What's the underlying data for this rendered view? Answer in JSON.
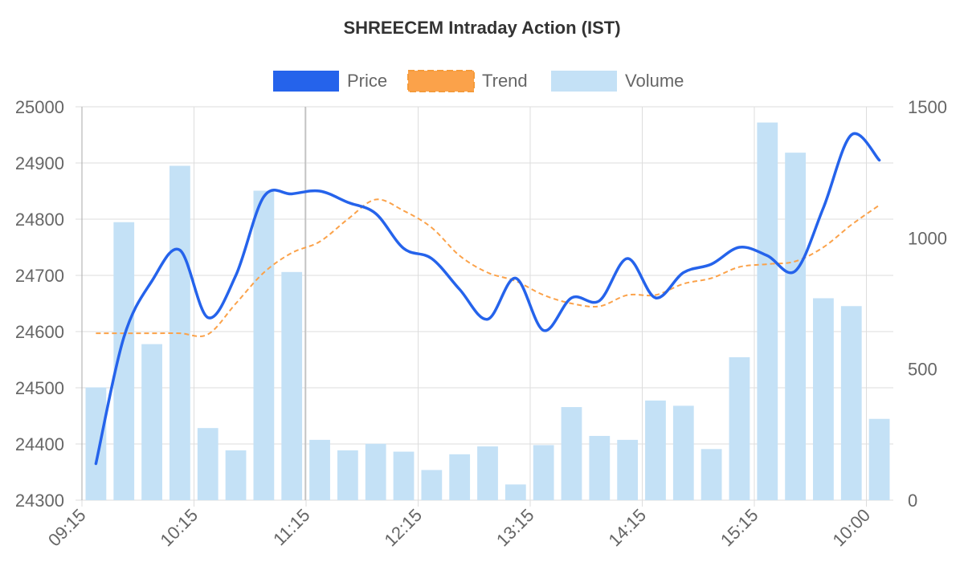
{
  "chart_data": {
    "type": "bar+line",
    "title": "SHREECEM Intraday Action (IST)",
    "legend": {
      "placement": "top-center",
      "items": [
        {
          "label": "Price",
          "color": "#2563eb",
          "style": "solid"
        },
        {
          "label": "Trend",
          "color": "#fba24a",
          "style": "dashed"
        },
        {
          "label": "Volume",
          "color": "#c4e1f6",
          "style": "bar"
        }
      ]
    },
    "x_labels": [
      "09:15",
      "10:15",
      "11:15",
      "12:15",
      "13:15",
      "14:15",
      "15:15",
      "10:00"
    ],
    "y_left": {
      "min": 24300,
      "max": 25000,
      "ticks": [
        24300,
        24400,
        24500,
        24600,
        24700,
        24800,
        24900,
        25000
      ]
    },
    "y_right": {
      "min": 0,
      "max": 1500,
      "ticks": [
        0,
        500,
        1000,
        1500
      ]
    },
    "grid": true,
    "series": [
      {
        "name": "Volume",
        "type": "bar",
        "axis": "right",
        "color": "#c4e1f6",
        "values": [
          430,
          1060,
          595,
          1275,
          275,
          190,
          1180,
          870,
          230,
          190,
          215,
          185,
          115,
          175,
          205,
          60,
          210,
          355,
          245,
          230,
          380,
          360,
          195,
          545,
          1440,
          1325,
          770,
          740,
          310
        ]
      },
      {
        "name": "Price",
        "type": "line",
        "axis": "left",
        "color": "#2563eb",
        "values": [
          24365,
          24590,
          24690,
          24745,
          24625,
          24700,
          24840,
          24845,
          24850,
          24830,
          24810,
          24748,
          24730,
          24675,
          24622,
          24695,
          24602,
          24660,
          24655,
          24730,
          24660,
          24705,
          24720,
          24750,
          24735,
          24708,
          24820,
          24950,
          24905
        ]
      },
      {
        "name": "Trend",
        "type": "line",
        "axis": "left",
        "color": "#fba24a",
        "dashed": true,
        "values": [
          24597,
          24597,
          24597,
          24597,
          24595,
          24650,
          24705,
          24740,
          24760,
          24800,
          24835,
          24815,
          24785,
          24735,
          24705,
          24690,
          24665,
          24650,
          24645,
          24665,
          24665,
          24685,
          24695,
          24715,
          24720,
          24725,
          24750,
          24790,
          24825
        ]
      }
    ]
  }
}
